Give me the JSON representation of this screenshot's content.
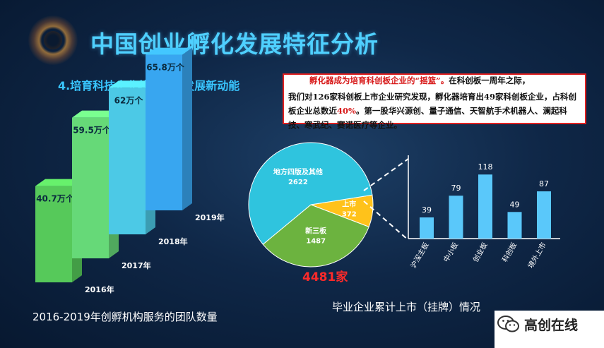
{
  "title": "中国创业孵化发展特征分析",
  "subtitle": "4.培育科技企业壮大经济发展新动能",
  "callout": {
    "line1_red": "孵化器成为培育科创板企业的“摇篮”。",
    "line1_black": "在科创板一周年之际，",
    "body_a": "我们对126家科创板上市企业研究发现，孵化器培育出49家科创板企业，占科创板企业总数近",
    "body_red": "40%",
    "body_b": "。第一股华兴源创、量子通信、天智航手术机器人、澜起科技、寒武纪、赛诺医疗等企业。"
  },
  "footer_left": "2016-2019年创孵机构服务的团队数量",
  "footer_right": "毕业企业累计上市（挂牌）情况",
  "total_label": "4481家",
  "brand": {
    "name": "高创在线",
    "icon": "wechat-icon"
  },
  "colors": {
    "accent": "#4fd0ff",
    "red": "#e02020",
    "bar": "#5ac8fa"
  },
  "chart_data": [
    {
      "type": "bar",
      "style": "3d-columns",
      "categories": [
        "2016年",
        "2017年",
        "2018年",
        "2019年"
      ],
      "value_labels": [
        "40.7万个",
        "59.5万个",
        "62万个",
        "65.8万个"
      ],
      "values": [
        40.7,
        59.5,
        62,
        65.8
      ],
      "unit": "万个",
      "colors": [
        "#56c95a",
        "#66d978",
        "#4cc9e6",
        "#38a6f0"
      ]
    },
    {
      "type": "pie",
      "slices": [
        {
          "label": "地方四版及其他",
          "value": 2622,
          "color": "#2fc4de"
        },
        {
          "label": "上市",
          "value": 372,
          "color": "#ffc21a"
        },
        {
          "label": "新三板",
          "value": 1487,
          "color": "#6cb33f"
        }
      ],
      "total": "4481家"
    },
    {
      "type": "bar",
      "categories": [
        "沪深主板",
        "中小板",
        "创业板",
        "科创板",
        "境外上市"
      ],
      "values": [
        39,
        79,
        118,
        49,
        87
      ],
      "ylim": [
        0,
        130
      ],
      "color": "#5ac8fa"
    }
  ]
}
